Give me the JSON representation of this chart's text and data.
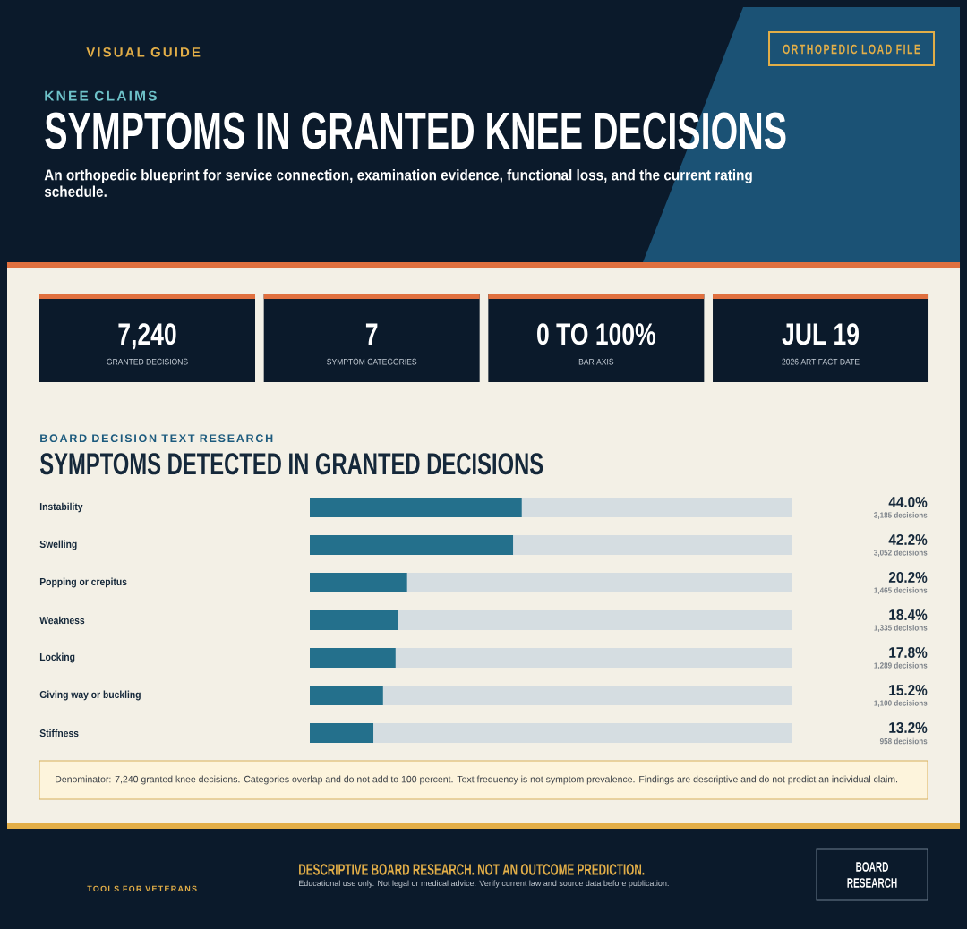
{
  "chart_data": [
    {
      "type": "other",
      "title": "SYMPTOMS IN GRANTED KNEE DECISIONS",
      "subtitle": "An orthopedic blueprint for service connection, examination evidence, functional loss, and the current rating schedule.",
      "annotations": [
        "VISUAL GUIDE",
        "ORTHOPEDIC LOAD FILE",
        "KNEE CLAIMS",
        "7,240",
        "GRANTED DECISIONS",
        "7",
        "SYMPTOM CATEGORIES",
        "0 TO 100%",
        "BAR AXIS",
        "JUL 19",
        "2026 ARTIFACT DATE"
      ]
    },
    {
      "type": "bar",
      "orientation": "horizontal",
      "subtitle": "BOARD DECISION TEXT RESEARCH",
      "title": "SYMPTOMS DETECTED IN GRANTED DECISIONS",
      "categories": [
        "Instability",
        "Swelling",
        "Popping or crepitus",
        "Weakness",
        "Locking",
        "Giving way or buckling",
        "Stiffness"
      ],
      "values": [
        44.0,
        42.2,
        20.2,
        18.4,
        17.8,
        15.2,
        13.2
      ],
      "value_labels": [
        "44.0%",
        "42.2%",
        "20.2%",
        "18.4%",
        "17.8%",
        "15.2%",
        "13.2%"
      ],
      "color": "#24708c",
      "xlim": [
        0,
        100
      ],
      "tick_labels": "y",
      "annotations": [
        "3,185 decisions",
        "3,052 decisions",
        "1,465 decisions",
        "1,335 decisions",
        "1,289 decisions",
        "1,100 decisions",
        "958 decisions",
        "Denominator: 7,240 granted knee decisions. Categories overlap and do not add to 100 percent. Text frequency is not symptom prevalence. Findings are descriptive and do not predict an individual claim.",
        "TOOLS FOR VETERANS",
        "DESCRIPTIVE BOARD RESEARCH. NOT AN OUTCOME PREDICTION.",
        "Educational use only. Not legal or medical advice. Verify current law and source data before publication.",
        "BOARD RESEARCH"
      ]
    }
  ]
}
